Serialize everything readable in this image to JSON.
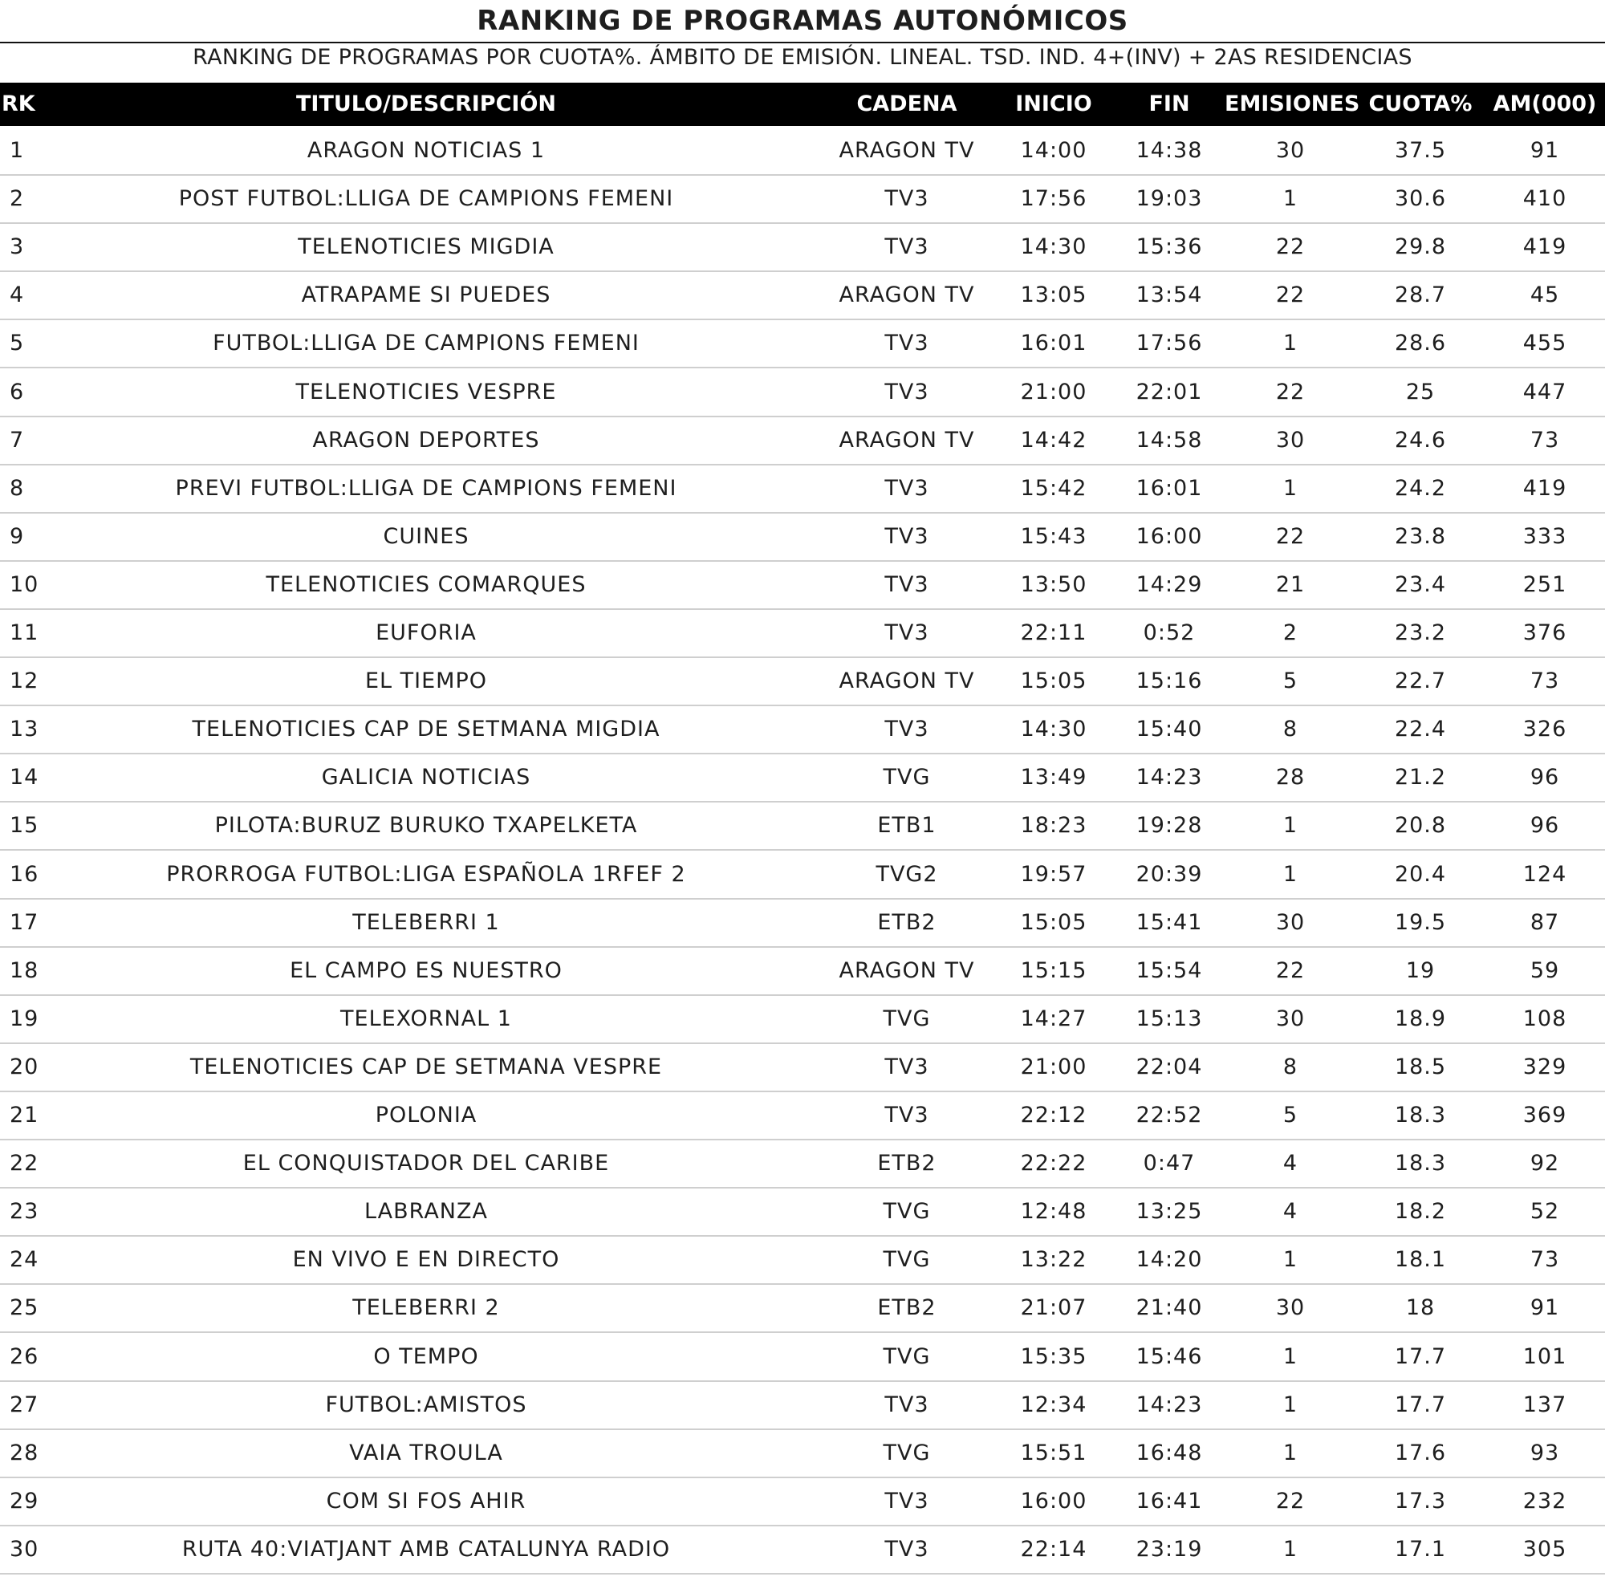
{
  "header": {
    "title": "RANKING DE PROGRAMAS AUTONÓMICOS",
    "subtitle": "RANKING DE PROGRAMAS POR CUOTA%. ÁMBITO DE EMISIÓN. LINEAL. TSD. IND. 4+(INV) + 2AS RESIDENCIAS"
  },
  "table": {
    "columns": [
      "RK",
      "TITULO/DESCRIPCIÓN",
      "CADENA",
      "INICIO",
      "FIN",
      "EMISIONES",
      "CUOTA%",
      "AM(000)"
    ],
    "rows": [
      [
        "1",
        "ARAGON NOTICIAS 1",
        "ARAGON TV",
        "14:00",
        "14:38",
        "30",
        "37.5",
        "91"
      ],
      [
        "2",
        "POST FUTBOL:LLIGA DE CAMPIONS FEMENI",
        "TV3",
        "17:56",
        "19:03",
        "1",
        "30.6",
        "410"
      ],
      [
        "3",
        "TELENOTICIES MIGDIA",
        "TV3",
        "14:30",
        "15:36",
        "22",
        "29.8",
        "419"
      ],
      [
        "4",
        "ATRAPAME SI PUEDES",
        "ARAGON TV",
        "13:05",
        "13:54",
        "22",
        "28.7",
        "45"
      ],
      [
        "5",
        "FUTBOL:LLIGA DE CAMPIONS FEMENI",
        "TV3",
        "16:01",
        "17:56",
        "1",
        "28.6",
        "455"
      ],
      [
        "6",
        "TELENOTICIES VESPRE",
        "TV3",
        "21:00",
        "22:01",
        "22",
        "25",
        "447"
      ],
      [
        "7",
        "ARAGON DEPORTES",
        "ARAGON TV",
        "14:42",
        "14:58",
        "30",
        "24.6",
        "73"
      ],
      [
        "8",
        "PREVI FUTBOL:LLIGA DE CAMPIONS FEMENI",
        "TV3",
        "15:42",
        "16:01",
        "1",
        "24.2",
        "419"
      ],
      [
        "9",
        "CUINES",
        "TV3",
        "15:43",
        "16:00",
        "22",
        "23.8",
        "333"
      ],
      [
        "10",
        "TELENOTICIES COMARQUES",
        "TV3",
        "13:50",
        "14:29",
        "21",
        "23.4",
        "251"
      ],
      [
        "11",
        "EUFORIA",
        "TV3",
        "22:11",
        "0:52",
        "2",
        "23.2",
        "376"
      ],
      [
        "12",
        "EL TIEMPO",
        "ARAGON TV",
        "15:05",
        "15:16",
        "5",
        "22.7",
        "73"
      ],
      [
        "13",
        "TELENOTICIES CAP DE SETMANA MIGDIA",
        "TV3",
        "14:30",
        "15:40",
        "8",
        "22.4",
        "326"
      ],
      [
        "14",
        "GALICIA NOTICIAS",
        "TVG",
        "13:49",
        "14:23",
        "28",
        "21.2",
        "96"
      ],
      [
        "15",
        "PILOTA:BURUZ BURUKO TXAPELKETA",
        "ETB1",
        "18:23",
        "19:28",
        "1",
        "20.8",
        "96"
      ],
      [
        "16",
        "PRORROGA FUTBOL:LIGA ESPAÑOLA 1RFEF 2",
        "TVG2",
        "19:57",
        "20:39",
        "1",
        "20.4",
        "124"
      ],
      [
        "17",
        "TELEBERRI 1",
        "ETB2",
        "15:05",
        "15:41",
        "30",
        "19.5",
        "87"
      ],
      [
        "18",
        "EL CAMPO ES NUESTRO",
        "ARAGON TV",
        "15:15",
        "15:54",
        "22",
        "19",
        "59"
      ],
      [
        "19",
        "TELEXORNAL 1",
        "TVG",
        "14:27",
        "15:13",
        "30",
        "18.9",
        "108"
      ],
      [
        "20",
        "TELENOTICIES CAP DE SETMANA VESPRE",
        "TV3",
        "21:00",
        "22:04",
        "8",
        "18.5",
        "329"
      ],
      [
        "21",
        "POLONIA",
        "TV3",
        "22:12",
        "22:52",
        "5",
        "18.3",
        "369"
      ],
      [
        "22",
        "EL CONQUISTADOR DEL CARIBE",
        "ETB2",
        "22:22",
        "0:47",
        "4",
        "18.3",
        "92"
      ],
      [
        "23",
        "LABRANZA",
        "TVG",
        "12:48",
        "13:25",
        "4",
        "18.2",
        "52"
      ],
      [
        "24",
        "EN VIVO E EN DIRECTO",
        "TVG",
        "13:22",
        "14:20",
        "1",
        "18.1",
        "73"
      ],
      [
        "25",
        "TELEBERRI 2",
        "ETB2",
        "21:07",
        "21:40",
        "30",
        "18",
        "91"
      ],
      [
        "26",
        "O TEMPO",
        "TVG",
        "15:35",
        "15:46",
        "1",
        "17.7",
        "101"
      ],
      [
        "27",
        "FUTBOL:AMISTOS",
        "TV3",
        "12:34",
        "14:23",
        "1",
        "17.7",
        "137"
      ],
      [
        "28",
        "VAIA TROULA",
        "TVG",
        "15:51",
        "16:48",
        "1",
        "17.6",
        "93"
      ],
      [
        "29",
        "COM SI FOS AHIR",
        "TV3",
        "16:00",
        "16:41",
        "22",
        "17.3",
        "232"
      ],
      [
        "30",
        "RUTA 40:VIATJANT AMB CATALUNYA RADIO",
        "TV3",
        "22:14",
        "23:19",
        "1",
        "17.1",
        "305"
      ]
    ]
  }
}
